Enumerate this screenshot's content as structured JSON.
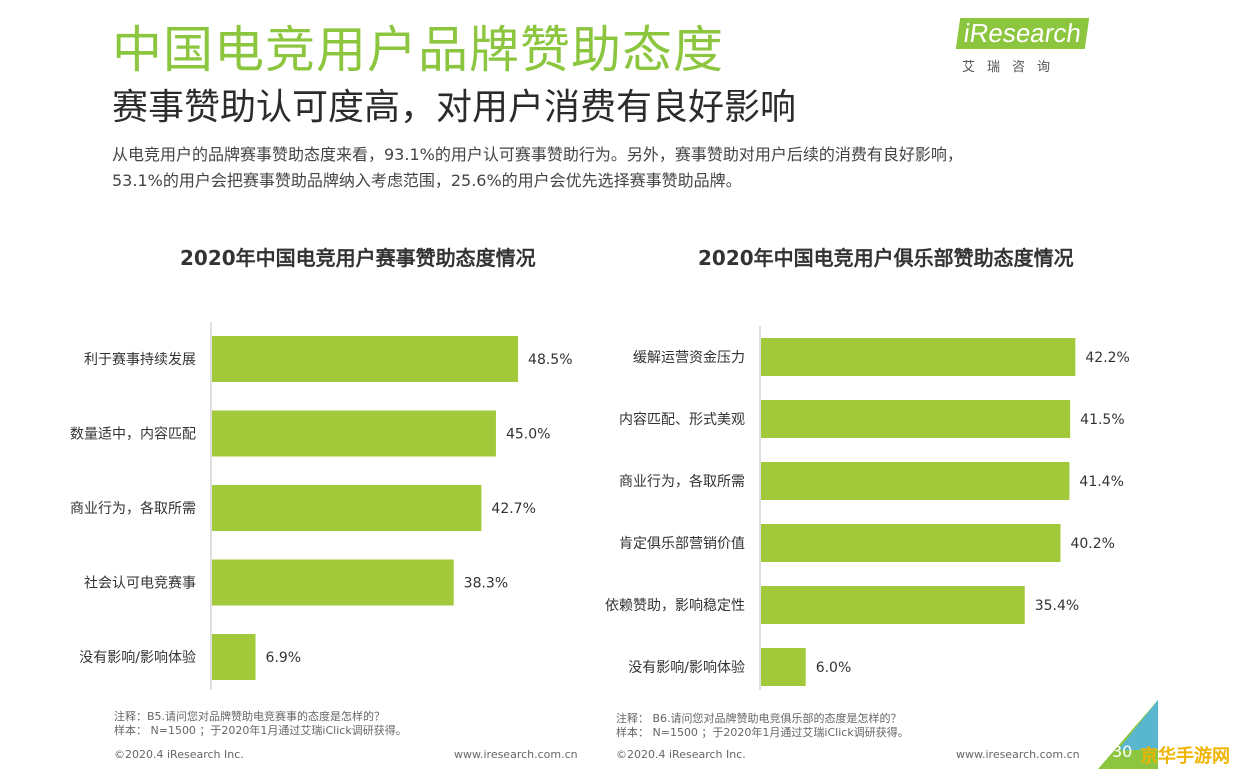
{
  "header": {
    "title": "中国电竞用户品牌赞助态度",
    "subtitle": "赛事赞助认可度高，对用户消费有良好影响",
    "intro_line1": "从电竞用户的品牌赛事赞助态度来看，93.1%的用户认可赛事赞助行为。另外，赛事赞助对用户后续的消费有良好影响，",
    "intro_line2": "53.1%的用户会把赛事赞助品牌纳入考虑范围，25.6%的用户会优先选择赛事赞助品牌。"
  },
  "logo": {
    "word": "iResearch",
    "cn": "艾瑞咨询"
  },
  "colors": {
    "bar": "#a2c93a",
    "title": "#8cc63f",
    "axis": "#bfbfbf"
  },
  "chart_data": [
    {
      "type": "bar",
      "orientation": "horizontal",
      "title": "2020年中国电竞用户赛事赞助态度情况",
      "categories": [
        "利于赛事持续发展",
        "数量适中，内容匹配",
        "商业行为，各取所需",
        "社会认可电竞赛事",
        "没有影响/影响体验"
      ],
      "values": [
        48.5,
        45.0,
        42.7,
        38.3,
        6.9
      ],
      "labels": [
        "48.5%",
        "45.0%",
        "42.7%",
        "38.3%",
        "6.9%"
      ],
      "xlim": [
        0,
        100
      ],
      "grid": false
    },
    {
      "type": "bar",
      "orientation": "horizontal",
      "title": "2020年中国电竞用户俱乐部赞助态度情况",
      "categories": [
        "缓解运营资金压力",
        "内容匹配、形式美观",
        "商业行为，各取所需",
        "肯定俱乐部营销价值",
        "依赖赞助，影响稳定性",
        "没有影响/影响体验"
      ],
      "values": [
        42.2,
        41.5,
        41.4,
        40.2,
        35.4,
        6.0
      ],
      "labels": [
        "42.2%",
        "41.5%",
        "41.4%",
        "40.2%",
        "35.4%",
        "6.0%"
      ],
      "xlim": [
        0,
        100
      ],
      "grid": false
    }
  ],
  "notes": {
    "left_line1": "注释：B5.请问您对品牌赞助电竞赛事的态度是怎样的？",
    "left_line2": "样本： N=1500 ；于2020年1月通过艾瑞iClick调研获得。",
    "right_line1": "注释： B6.请问您对品牌赞助电竞俱乐部的态度是怎样的？",
    "right_line2": "样本： N=1500 ；于2020年1月通过艾瑞iClick调研获得。"
  },
  "footer": {
    "copyright_left": "©2020.4 iResearch Inc.",
    "url_left": "www.iresearch.com.cn",
    "copyright_right": "©2020.4 iResearch Inc.",
    "url_right": "www.iresearch.com.cn",
    "page": "30",
    "watermark": "京华手游网"
  }
}
